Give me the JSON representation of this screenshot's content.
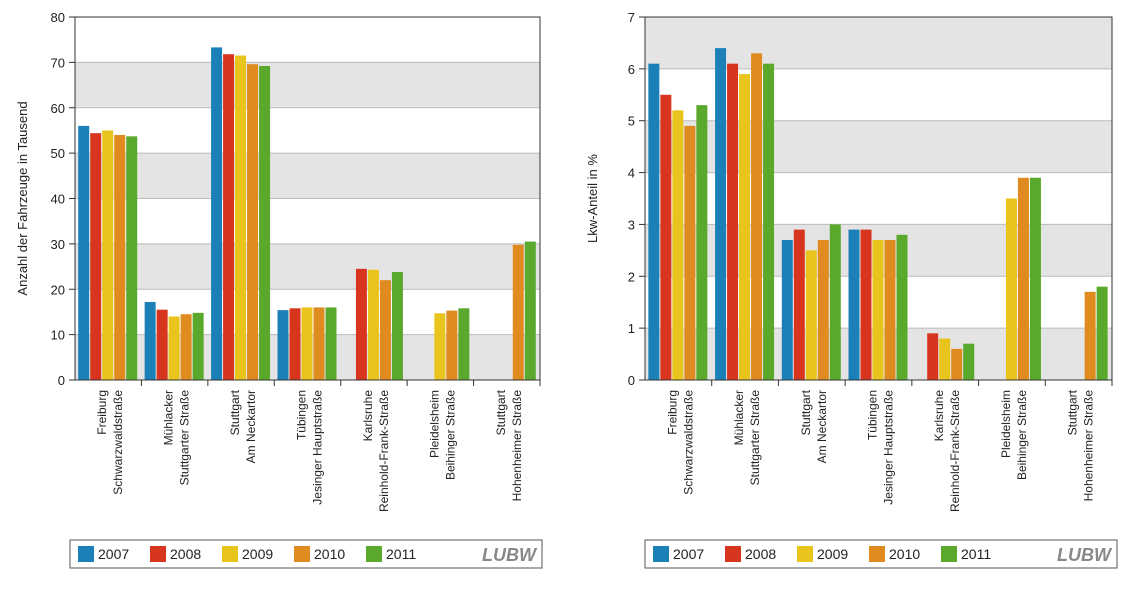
{
  "chart_data": [
    {
      "type": "bar",
      "y_label": "Anzahl der Fahrzeuge in Tausend",
      "categories": [
        [
          "Freiburg",
          "Schwarzwaldstraße"
        ],
        [
          "Mühlacker",
          "Stuttgarter Straße"
        ],
        [
          "Stuttgart",
          "Am Neckartor"
        ],
        [
          "Tübingen",
          "Jesinger Hauptstraße"
        ],
        [
          "Karlsruhe",
          "Reinhold-Frank-Straße"
        ],
        [
          "Pleidelsheim",
          "Beihinger Straße"
        ],
        [
          "Stuttgart",
          "Hohenheimer Straße"
        ]
      ],
      "series": [
        {
          "name": "2007",
          "color": "#1b80b8",
          "values": [
            56,
            17.2,
            73.3,
            15.4,
            null,
            null,
            null
          ]
        },
        {
          "name": "2008",
          "color": "#d8351f",
          "values": [
            54.4,
            15.5,
            71.8,
            15.8,
            24.5,
            null,
            null
          ]
        },
        {
          "name": "2009",
          "color": "#e9c41c",
          "values": [
            55,
            14,
            71.5,
            16,
            24.3,
            14.7,
            null
          ]
        },
        {
          "name": "2010",
          "color": "#e08b20",
          "values": [
            54,
            14.5,
            69.6,
            16,
            22,
            15.3,
            29.8
          ]
        },
        {
          "name": "2011",
          "color": "#5aa82c",
          "values": [
            53.7,
            14.8,
            69.2,
            16,
            23.8,
            15.8,
            30.5
          ]
        }
      ],
      "ylim": [
        0,
        80
      ],
      "yticks": [
        0,
        10,
        20,
        30,
        40,
        50,
        60,
        70,
        80
      ],
      "banded_grid": true,
      "logo": "LUBW"
    },
    {
      "type": "bar",
      "y_label": "Lkw-Anteil in %",
      "categories": [
        [
          "Freiburg",
          "Schwarzwaldstraße"
        ],
        [
          "Mühlacker",
          "Stuttgarter Straße"
        ],
        [
          "Stuttgart",
          "Am Neckartor"
        ],
        [
          "Tübingen",
          "Jesinger Hauptstraße"
        ],
        [
          "Karlsruhe",
          "Reinhold-Frank-Straße"
        ],
        [
          "Pleidelsheim",
          "Beihinger Straße"
        ],
        [
          "Stuttgart",
          "Hohenheimer Straße"
        ]
      ],
      "series": [
        {
          "name": "2007",
          "color": "#1b80b8",
          "values": [
            6.1,
            6.4,
            2.7,
            2.9,
            null,
            null,
            null
          ]
        },
        {
          "name": "2008",
          "color": "#d8351f",
          "values": [
            5.5,
            6.1,
            2.9,
            2.9,
            0.9,
            null,
            null
          ]
        },
        {
          "name": "2009",
          "color": "#e9c41c",
          "values": [
            5.2,
            5.9,
            2.5,
            2.7,
            0.8,
            3.5,
            null
          ]
        },
        {
          "name": "2010",
          "color": "#e08b20",
          "values": [
            4.9,
            6.3,
            2.7,
            2.7,
            0.6,
            3.9,
            1.7
          ]
        },
        {
          "name": "2011",
          "color": "#5aa82c",
          "values": [
            5.3,
            6.1,
            3.0,
            2.8,
            0.7,
            3.9,
            1.8
          ]
        }
      ],
      "ylim": [
        0,
        7
      ],
      "yticks": [
        0,
        1,
        2,
        3,
        4,
        5,
        6,
        7
      ],
      "banded_grid": true,
      "logo": "LUBW"
    }
  ]
}
